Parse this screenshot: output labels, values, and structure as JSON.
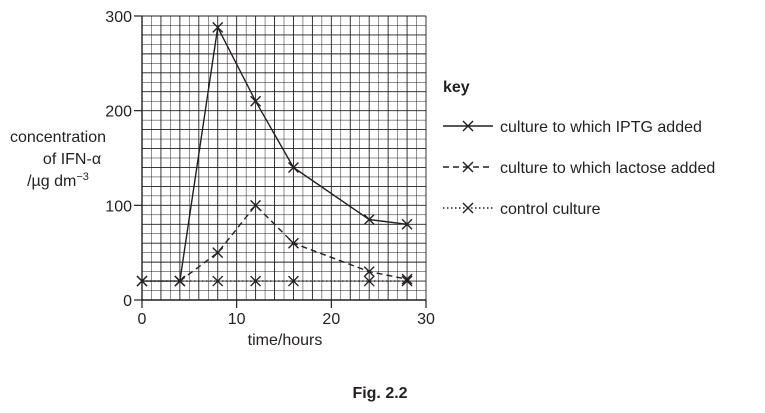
{
  "figure_caption": "Fig. 2.2",
  "chart_data": {
    "type": "line",
    "title": "",
    "xlabel": "time/hours",
    "ylabel_lines": [
      "concentration",
      "of IFN-α",
      "/µg dm"
    ],
    "ylabel_superscript": "−3",
    "xlim": [
      0,
      30
    ],
    "ylim": [
      0,
      300
    ],
    "x_ticks": [
      0,
      10,
      20,
      30
    ],
    "y_ticks": [
      0,
      100,
      200,
      300
    ],
    "grid": true,
    "legend_title": "key",
    "legend_position": "right",
    "series": [
      {
        "name": "culture to which IPTG added",
        "style": "solid",
        "x": [
          0,
          4,
          8,
          12,
          16,
          24,
          28
        ],
        "y": [
          20,
          20,
          288,
          210,
          140,
          85,
          80
        ]
      },
      {
        "name": "culture to which lactose added",
        "style": "dashed",
        "x": [
          4,
          8,
          12,
          16,
          24,
          28
        ],
        "y": [
          20,
          50,
          100,
          60,
          30,
          22
        ]
      },
      {
        "name": "control culture",
        "style": "dotted",
        "x": [
          0,
          4,
          8,
          12,
          16,
          24,
          28
        ],
        "y": [
          20,
          20,
          20,
          20,
          20,
          20,
          20
        ]
      }
    ]
  }
}
